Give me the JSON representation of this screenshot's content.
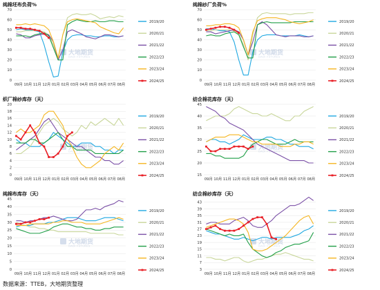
{
  "source_note": "数据来源：TTEB，大地期货整理",
  "watermark": {
    "name": "大地期货",
    "sub": "DADI FUTURES"
  },
  "colors": {
    "2019/20": "#1ea7e1",
    "2020/21": "#c8d69a",
    "2021/22": "#7a4fa6",
    "2022/23": "#1f9e46",
    "2023/24": "#f5b51f",
    "2024/25": "#e81e25"
  },
  "chart_data": [
    {
      "type": "line",
      "title": "纯棉坯布负荷%",
      "ylim": [
        0,
        70
      ],
      "yticks": [
        0,
        10,
        20,
        30,
        40,
        50,
        60,
        70
      ],
      "x_labels": [
        "09月",
        "10月",
        "11月",
        "12月",
        "01月",
        "02月",
        "03月",
        "04月",
        "05月",
        "06月",
        "07月",
        "08月"
      ],
      "series": [
        {
          "name": "2019/20",
          "values": [
            50,
            51,
            50,
            50,
            49,
            48,
            35,
            18,
            3,
            4,
            28,
            40,
            44,
            45,
            45,
            44,
            44,
            43,
            43,
            44,
            44,
            43,
            43,
            44
          ]
        },
        {
          "name": "2020/21",
          "values": [
            48,
            48,
            49,
            49,
            49,
            49,
            48,
            45,
            35,
            20,
            45,
            62,
            65,
            66,
            65,
            65,
            66,
            64,
            61,
            62,
            63,
            62,
            64,
            63
          ]
        },
        {
          "name": "2021/22",
          "values": [
            46,
            45,
            42,
            42,
            44,
            45,
            46,
            45,
            38,
            20,
            30,
            48,
            50,
            48,
            46,
            43,
            42,
            41,
            43,
            45,
            45,
            44,
            43,
            44
          ]
        },
        {
          "name": "2022/23",
          "values": [
            44,
            44,
            44,
            43,
            45,
            46,
            47,
            44,
            32,
            20,
            20,
            55,
            58,
            60,
            59,
            58,
            58,
            59,
            58,
            58,
            59,
            59,
            58,
            58
          ]
        },
        {
          "name": "2023/24",
          "values": [
            55,
            55,
            56,
            55,
            56,
            55,
            54,
            50,
            38,
            22,
            45,
            58,
            60,
            61,
            60,
            59,
            58,
            57,
            53,
            51,
            49,
            47,
            46,
            52
          ]
        },
        {
          "name": "2024/25",
          "values": [
            52,
            52,
            51,
            51,
            50,
            49,
            46,
            42
          ]
        }
      ]
    },
    {
      "type": "line",
      "title": "纯棉纱厂负荷%",
      "ylim": [
        0,
        70
      ],
      "yticks": [
        0,
        10,
        20,
        30,
        40,
        50,
        60,
        70
      ],
      "x_labels": [
        "09月",
        "10月",
        "11月",
        "12月",
        "01月",
        "02月",
        "03月",
        "04月",
        "05月",
        "06月",
        "07月",
        "08月"
      ],
      "series": [
        {
          "name": "2019/20",
          "values": [
            51,
            51,
            50,
            49,
            49,
            48,
            38,
            20,
            5,
            5,
            28,
            40,
            44,
            45,
            45,
            45,
            44,
            44,
            44,
            44,
            45,
            44,
            43,
            44
          ]
        },
        {
          "name": "2020/21",
          "values": [
            49,
            49,
            50,
            50,
            50,
            50,
            49,
            46,
            35,
            20,
            45,
            62,
            66,
            67,
            66,
            66,
            66,
            66,
            65,
            66,
            66,
            66,
            67,
            67
          ]
        },
        {
          "name": "2021/22",
          "values": [
            48,
            48,
            46,
            47,
            48,
            49,
            50,
            48,
            40,
            25,
            38,
            55,
            58,
            55,
            50,
            45,
            44,
            43,
            44,
            44,
            44,
            43,
            43,
            44
          ]
        },
        {
          "name": "2022/23",
          "values": [
            44,
            45,
            44,
            44,
            46,
            47,
            48,
            45,
            33,
            22,
            22,
            55,
            57,
            58,
            57,
            57,
            57,
            57,
            57,
            58,
            58,
            58,
            58,
            58
          ]
        },
        {
          "name": "2023/24",
          "values": [
            54,
            54,
            55,
            55,
            56,
            56,
            55,
            52,
            40,
            25,
            48,
            59,
            61,
            62,
            62,
            62,
            61,
            60,
            58,
            57,
            56,
            57,
            58,
            60
          ]
        },
        {
          "name": "2024/25",
          "values": [
            50,
            51,
            52,
            53,
            53,
            52,
            50,
            47
          ]
        }
      ]
    },
    {
      "type": "line",
      "title": "织厂棉纱库存（天）",
      "ylim": [
        0,
        20
      ],
      "yticks": [
        0,
        2,
        4,
        6,
        8,
        10,
        12,
        14,
        16,
        18,
        20
      ],
      "x_labels": [
        "09月",
        "10月",
        "11月",
        "12月",
        "01月",
        "02月",
        "03月",
        "04月",
        "05月",
        "06月",
        "07月",
        "08月"
      ],
      "series": [
        {
          "name": "2019/20",
          "values": [
            10,
            9,
            9,
            8,
            8,
            8,
            9,
            10,
            12,
            11,
            10,
            9,
            8,
            8,
            9,
            9,
            9,
            8,
            8,
            7,
            7,
            6,
            7,
            7
          ]
        },
        {
          "name": "2020/21",
          "values": [
            6,
            6,
            7,
            8,
            10,
            12,
            14,
            15,
            16,
            15,
            13,
            12,
            11,
            12,
            14,
            13,
            15,
            14,
            15,
            16,
            15,
            14,
            16,
            14
          ]
        },
        {
          "name": "2021/22",
          "values": [
            7,
            8,
            9,
            10,
            11,
            13,
            15,
            16,
            14,
            12,
            11,
            10,
            9,
            8,
            8,
            7,
            6,
            5,
            5,
            4,
            4,
            3,
            3,
            4
          ]
        },
        {
          "name": "2022/23",
          "values": [
            9,
            9,
            9,
            10,
            10,
            9,
            9,
            10,
            11,
            12,
            10,
            8,
            8,
            7,
            7,
            7,
            7,
            6,
            6,
            6,
            6,
            6,
            6,
            7
          ]
        },
        {
          "name": "2023/24",
          "values": [
            12,
            13,
            12,
            12,
            13,
            14,
            17,
            18,
            18,
            16,
            14,
            10,
            8,
            5,
            3,
            2,
            2,
            3,
            4,
            6,
            7,
            8,
            7,
            9
          ]
        },
        {
          "name": "2024/25",
          "values": [
            11,
            10,
            12,
            14,
            12,
            9,
            8,
            5,
            5,
            6,
            8,
            11,
            12
          ]
        }
      ]
    },
    {
      "type": "line",
      "title": "纺企棉花库存（天）",
      "ylim": [
        15,
        45
      ],
      "yticks": [
        15,
        20,
        25,
        30,
        35,
        40,
        45
      ],
      "x_labels": [
        "09月",
        "10月",
        "11月",
        "12月",
        "01月",
        "02月",
        "03月",
        "04月",
        "05月",
        "06月",
        "07月",
        "08月"
      ],
      "series": [
        {
          "name": "2019/20",
          "values": [
            29,
            30,
            30,
            29,
            29,
            28,
            29,
            30,
            32,
            31,
            30,
            30,
            30,
            31,
            31,
            30,
            30,
            29,
            28,
            28,
            27,
            27,
            27,
            26
          ]
        },
        {
          "name": "2020/21",
          "values": [
            38,
            39,
            40,
            40,
            40,
            41,
            43,
            44,
            43,
            42,
            41,
            41,
            40,
            40,
            41,
            40,
            39,
            38,
            38,
            40,
            40,
            42,
            43,
            44
          ]
        },
        {
          "name": "2021/22",
          "values": [
            44,
            43,
            42,
            40,
            39,
            37,
            36,
            35,
            34,
            32,
            30,
            28,
            27,
            26,
            25,
            24,
            23,
            22,
            21,
            21,
            21,
            21,
            20,
            20
          ]
        },
        {
          "name": "2022/23",
          "values": [
            24,
            24,
            23,
            23,
            22,
            22,
            22,
            22,
            23,
            26,
            28,
            29,
            30,
            30,
            29,
            28,
            28,
            28,
            29,
            30,
            29,
            29,
            29,
            29
          ]
        },
        {
          "name": "2023/24",
          "values": [
            29,
            30,
            31,
            31,
            31,
            32,
            32,
            32,
            31,
            30,
            29,
            29,
            28,
            28,
            28,
            28,
            27,
            27,
            27,
            28,
            28,
            29,
            29,
            28
          ]
        },
        {
          "name": "2024/25",
          "values": [
            27,
            25,
            25,
            26,
            26,
            26,
            27,
            27,
            27,
            26,
            27
          ]
        }
      ]
    },
    {
      "type": "line",
      "title": "纯棉布库存（天）",
      "ylim": [
        0,
        45
      ],
      "yticks": [
        0,
        5,
        10,
        15,
        20,
        25,
        30,
        35,
        40,
        45
      ],
      "x_labels": [
        "09月",
        "10月",
        "11月",
        "12月",
        "01月",
        "02月",
        "03月",
        "04月",
        "05月",
        "06月",
        "07月",
        "08月"
      ],
      "series": [
        {
          "name": "2019/20",
          "values": [
            27,
            28,
            28,
            28,
            29,
            29,
            29,
            30,
            30,
            31,
            32,
            33,
            33,
            33,
            32,
            31,
            31,
            31,
            32,
            33,
            33,
            33,
            32,
            31
          ]
        },
        {
          "name": "2020/21",
          "values": [
            30,
            29,
            28,
            27,
            27,
            26,
            26,
            25,
            25,
            24,
            24,
            24,
            24,
            24,
            24,
            24,
            23,
            23,
            23,
            23,
            23,
            23,
            22,
            22
          ]
        },
        {
          "name": "2021/22",
          "values": [
            31,
            31,
            30,
            31,
            31,
            32,
            33,
            33,
            34,
            33,
            32,
            31,
            31,
            32,
            35,
            38,
            38,
            39,
            38,
            40,
            41,
            42,
            44,
            43
          ]
        },
        {
          "name": "2022/23",
          "values": [
            26,
            25,
            24,
            23,
            23,
            23,
            24,
            25,
            27,
            28,
            29,
            29,
            28,
            27,
            27,
            26,
            26,
            25,
            25,
            26,
            26,
            27,
            27,
            27
          ]
        },
        {
          "name": "2023/24",
          "values": [
            28,
            28,
            28,
            29,
            29,
            29,
            29,
            29,
            30,
            30,
            31,
            31,
            30,
            30,
            30,
            29,
            29,
            29,
            29,
            30,
            31,
            32,
            33,
            32
          ]
        },
        {
          "name": "2024/25",
          "values": [
            29,
            29,
            30,
            30,
            31,
            32,
            32,
            33
          ]
        }
      ]
    },
    {
      "type": "line",
      "title": "纺企棉纱库存（天）",
      "ylim": [
        3,
        45
      ],
      "yticks": [
        3,
        7,
        11,
        15,
        19,
        23,
        27,
        31,
        35,
        39,
        43
      ],
      "x_labels": [
        "09月",
        "10月",
        "11月",
        "12月",
        "01月",
        "02月",
        "03月",
        "04月",
        "05月",
        "06月",
        "07月",
        "08月"
      ],
      "series": [
        {
          "name": "2019/20",
          "values": [
            26,
            25,
            24,
            24,
            23,
            22,
            21,
            21,
            22,
            21,
            20,
            21,
            22,
            22,
            21,
            22,
            22,
            22,
            22,
            23,
            24,
            26,
            27,
            29
          ]
        },
        {
          "name": "2020/21",
          "values": [
            10,
            10,
            9,
            9,
            8,
            9,
            10,
            10,
            8,
            7,
            8,
            9,
            9,
            10,
            11,
            12,
            12,
            13,
            12,
            11,
            10,
            9,
            9,
            8
          ]
        },
        {
          "name": "2021/22",
          "values": [
            30,
            31,
            31,
            30,
            30,
            30,
            32,
            33,
            34,
            32,
            29,
            28,
            28,
            30,
            32,
            35,
            37,
            39,
            41,
            41,
            42,
            44,
            46,
            44
          ]
        },
        {
          "name": "2022/23",
          "values": [
            27,
            26,
            25,
            24,
            23,
            24,
            23,
            23,
            24,
            19,
            15,
            13,
            11,
            10,
            11,
            13,
            14,
            16,
            17,
            18,
            18,
            19,
            20,
            25
          ]
        },
        {
          "name": "2023/24",
          "values": [
            28,
            29,
            30,
            31,
            32,
            33,
            33,
            32,
            30,
            25,
            15,
            14,
            14,
            15,
            17,
            19,
            21,
            23,
            26,
            29,
            32,
            34,
            35,
            30
          ]
        },
        {
          "name": "2024/25",
          "values": [
            27,
            28,
            29,
            27,
            26,
            26,
            26,
            27,
            29,
            31,
            33,
            34,
            34,
            30,
            22,
            21
          ]
        }
      ]
    }
  ]
}
